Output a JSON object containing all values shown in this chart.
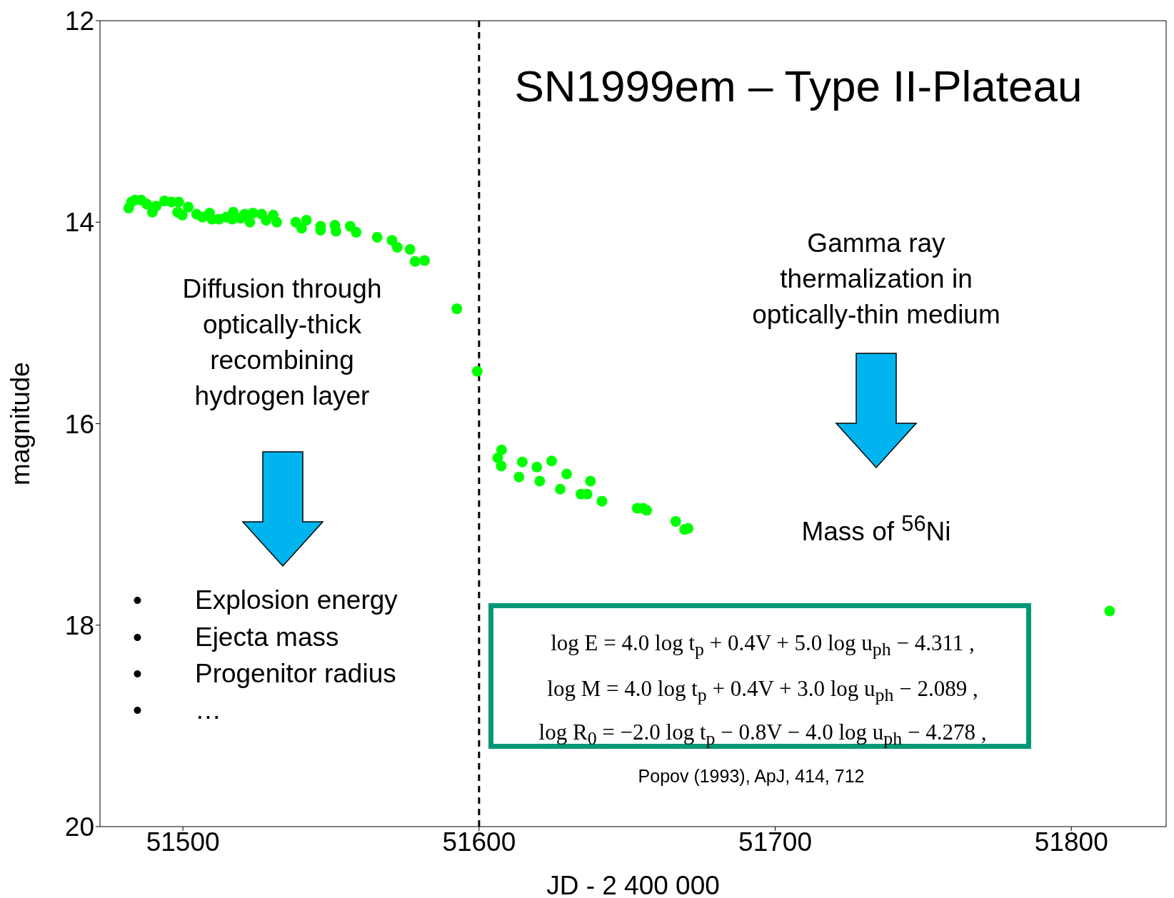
{
  "chart_data": {
    "type": "scatter",
    "title": "SN1999em – Type II-Plateau",
    "xlabel": "JD - 2 400 000",
    "ylabel": "magnitude",
    "xlim": [
      51472,
      51832
    ],
    "xticks": [
      51500,
      51600,
      51700,
      51800
    ],
    "ylim": [
      20,
      12
    ],
    "yticks": [
      12,
      14,
      16,
      18,
      20
    ],
    "marker": "circle",
    "grid": false,
    "series": [
      {
        "color": "#00ff00",
        "x": [
          51481.7,
          51482.6,
          51483.8,
          51485.9,
          51487.8,
          51489.7,
          51491.0,
          51493.8,
          51496.2,
          51498.6,
          51498.2,
          51499.8,
          51501.8,
          51504.6,
          51506.6,
          51509.0,
          51509.8,
          51512.2,
          51514.6,
          51517.0,
          51516.6,
          51519.4,
          51520.9,
          51522.6,
          51523.7,
          51526.6,
          51528.1,
          51530.5,
          51531.7,
          51538.1,
          51540.1,
          51541.7,
          51546.5,
          51546.5,
          51551.3,
          51551.7,
          51556.5,
          51558.5,
          51565.6,
          51570.6,
          51572.4,
          51576.7,
          51578.4,
          51581.6,
          51592.5,
          51599.4,
          51607.6,
          51606.3,
          51607.5,
          51614.6,
          51613.5,
          51619.5,
          51620.5,
          51624.5,
          51629.6,
          51627.4,
          51637.6,
          51634.4,
          51636.5,
          51641.5,
          51653.4,
          51655.4,
          51656.6,
          51666.4,
          51669.4,
          51670.6,
          51812.9
        ],
        "values": [
          13.86,
          13.8,
          13.78,
          13.78,
          13.82,
          13.9,
          13.84,
          13.79,
          13.8,
          13.8,
          13.9,
          13.93,
          13.85,
          13.92,
          13.95,
          13.91,
          13.97,
          13.97,
          13.95,
          13.9,
          13.97,
          13.96,
          13.92,
          14.0,
          13.91,
          13.92,
          13.98,
          13.93,
          14.0,
          14.0,
          14.06,
          13.98,
          14.04,
          14.08,
          14.03,
          14.09,
          14.04,
          14.1,
          14.15,
          14.18,
          14.25,
          14.27,
          14.39,
          14.38,
          14.86,
          15.48,
          16.26,
          16.34,
          16.42,
          16.38,
          16.53,
          16.43,
          16.57,
          16.37,
          16.5,
          16.65,
          16.57,
          16.7,
          16.7,
          16.77,
          16.84,
          16.84,
          16.86,
          16.97,
          17.05,
          17.04,
          17.86
        ]
      }
    ],
    "ref_lines": [
      {
        "axis": "x",
        "value": 51600,
        "label": null,
        "color": "#000000",
        "line_style": "dashed"
      }
    ],
    "annotations": [
      "Diffusion through\noptically-thick\nrecombining\nhydrogen layer",
      "•  Explosion energy",
      "•  Ejecta mass",
      "•  Progenitor radius",
      "•  …",
      "Gamma ray\nthermalization in\noptically-thin medium",
      "Mass of $^{56}$Ni",
      "log E = 4.0 log t$_{p}$ + 0.4V + 5.0 log u$_{ph}$ − 4.311 ,",
      "log M = 4.0 log t$_{p}$ + 0.4V + 3.0 log u$_{ph}$ − 2.089 ,",
      "log R$_{0}$ = −2.0 log t$_{p}$ − 0.8V − 4.0 log u$_{ph}$ − 4.278 ,",
      "Popov (1993), ApJ, 414, 712"
    ]
  }
}
